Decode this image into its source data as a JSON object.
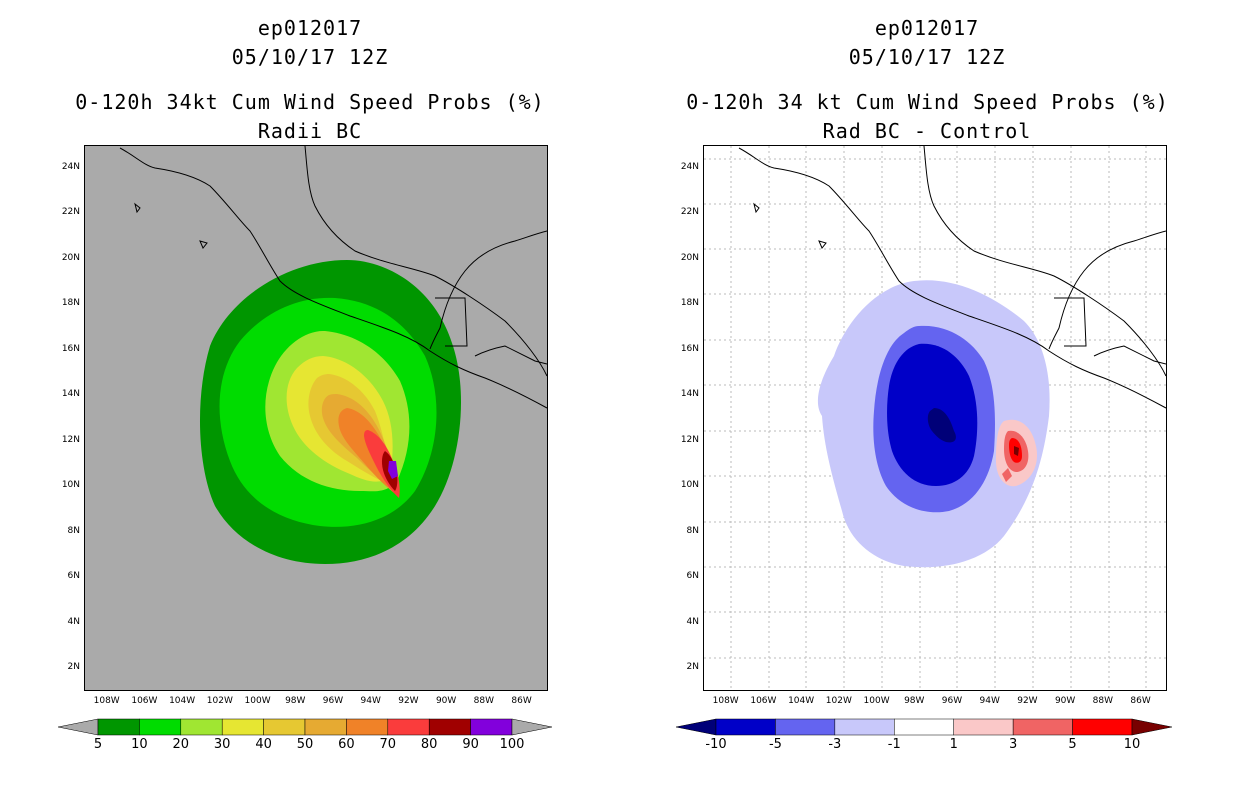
{
  "left": {
    "title_line1": "ep012017",
    "title_line2": "05/10/17 12Z",
    "title_line3": "0-120h 34kt Cum Wind Speed Probs (%)",
    "title_line4": "Radii BC",
    "background_color": "#aaaaaa",
    "colorbar": {
      "labels": [
        "5",
        "10",
        "20",
        "30",
        "40",
        "50",
        "60",
        "70",
        "80",
        "90",
        "100"
      ],
      "colors": [
        "#009600",
        "#00dc00",
        "#a0e632",
        "#e6e632",
        "#e6c832",
        "#e6aa32",
        "#f08228",
        "#fa3c3c",
        "#a00000",
        "#8200dc"
      ],
      "end_color": "#aaaaaa"
    }
  },
  "right": {
    "title_line1": "ep012017",
    "title_line2": "05/10/17 12Z",
    "title_line3": "0-120h 34 kt Cum Wind Speed Probs (%)",
    "title_line4": "Rad BC - Control",
    "background_color": "#ffffff",
    "colorbar": {
      "labels": [
        "-10",
        "-5",
        "-3",
        "-1",
        "1",
        "3",
        "5",
        "10"
      ],
      "colors": [
        "#0000c8",
        "#6464f0",
        "#c8c8fa",
        "#ffffff",
        "#fac8c8",
        "#f06464",
        "#ff0000"
      ],
      "end_left_color": "#000078",
      "end_right_color": "#780000"
    }
  },
  "axes": {
    "lat_labels": [
      "24N",
      "22N",
      "20N",
      "18N",
      "16N",
      "14N",
      "12N",
      "10N",
      "8N",
      "6N",
      "4N",
      "2N"
    ],
    "lon_labels": [
      "108W",
      "106W",
      "104W",
      "102W",
      "100W",
      "98W",
      "96W",
      "94W",
      "92W",
      "90W",
      "88W",
      "86W"
    ],
    "lat_values": [
      24,
      22,
      20,
      18,
      16,
      14,
      12,
      10,
      8,
      6,
      4,
      2
    ],
    "lon_values": [
      -108,
      -106,
      -104,
      -102,
      -100,
      -98,
      -96,
      -94,
      -92,
      -90,
      -88,
      -86
    ]
  }
}
